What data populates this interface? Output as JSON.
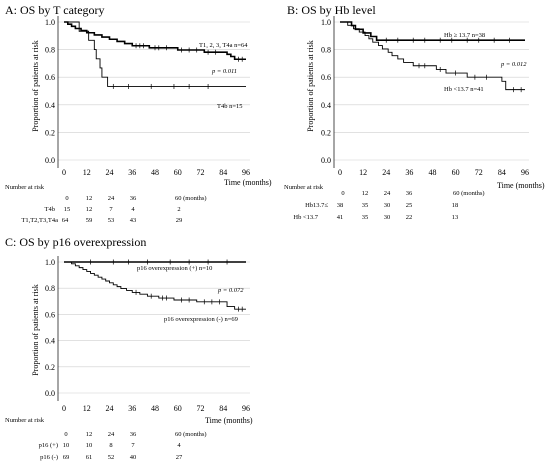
{
  "chart_data": [
    {
      "type": "line",
      "title": "A:  OS by T category",
      "ylabel": "Proportion of patients at risk",
      "xlabel": "Time (months)",
      "xlim": [
        0,
        96
      ],
      "ylim": [
        0,
        1
      ],
      "x_ticks": [
        "0",
        "12",
        "24",
        "36",
        "48",
        "60",
        "72",
        "84",
        "96"
      ],
      "y_ticks": [
        "0.0",
        "0.2",
        "0.4",
        "0.6",
        "0.8",
        "1.0"
      ],
      "grid": true,
      "series": [
        {
          "name": "T1, 2, 3, T4a n=64",
          "steps": [
            [
              0,
              1.0
            ],
            [
              2,
              0.984
            ],
            [
              4,
              0.969
            ],
            [
              6,
              0.953
            ],
            [
              9,
              0.938
            ],
            [
              12,
              0.922
            ],
            [
              16,
              0.906
            ],
            [
              20,
              0.891
            ],
            [
              24,
              0.875
            ],
            [
              28,
              0.859
            ],
            [
              32,
              0.844
            ],
            [
              36,
              0.828
            ],
            [
              45,
              0.813
            ],
            [
              60,
              0.797
            ],
            [
              74,
              0.781
            ],
            [
              86,
              0.766
            ],
            [
              88,
              0.75
            ],
            [
              90,
              0.73
            ],
            [
              96,
              0.73
            ]
          ],
          "censors": [
            [
              38,
              0.828
            ],
            [
              40,
              0.828
            ],
            [
              42,
              0.828
            ],
            [
              48,
              0.813
            ],
            [
              50,
              0.813
            ],
            [
              54,
              0.813
            ],
            [
              62,
              0.797
            ],
            [
              66,
              0.797
            ],
            [
              70,
              0.797
            ],
            [
              76,
              0.781
            ],
            [
              80,
              0.781
            ],
            [
              92,
              0.73
            ],
            [
              94,
              0.73
            ]
          ]
        },
        {
          "name": "T4b n=15",
          "steps": [
            [
              0,
              1.0
            ],
            [
              8,
              0.933
            ],
            [
              13,
              0.867
            ],
            [
              16,
              0.8
            ],
            [
              17,
              0.733
            ],
            [
              19,
              0.667
            ],
            [
              20,
              0.6
            ],
            [
              23,
              0.533
            ],
            [
              96,
              0.533
            ]
          ],
          "censors": [
            [
              26,
              0.533
            ],
            [
              34,
              0.533
            ],
            [
              46,
              0.533
            ],
            [
              58,
              0.533
            ],
            [
              66,
              0.533
            ],
            [
              76,
              0.533
            ]
          ]
        }
      ],
      "annotations": [
        "p = 0.011"
      ],
      "risk_table": {
        "header": "Number at risk",
        "columns": [
          "0",
          "12",
          "24",
          "36",
          "60 (months)"
        ],
        "rows": [
          {
            "label": "T4b",
            "values": [
              "15",
              "12",
              "7",
              "4",
              "2"
            ]
          },
          {
            "label": "T1,T2,T3,T4a",
            "values": [
              "64",
              "59",
              "53",
              "43",
              "29"
            ]
          }
        ]
      }
    },
    {
      "type": "line",
      "title": "B:  OS by Hb level",
      "ylabel": "Proportion of patients at risk",
      "xlabel": "Time (months)",
      "xlim": [
        0,
        96
      ],
      "ylim": [
        0,
        1
      ],
      "x_ticks": [
        "0",
        "12",
        "24",
        "36",
        "48",
        "60",
        "72",
        "84",
        "96"
      ],
      "y_ticks": [
        "0.0",
        "0.2",
        "0.4",
        "0.6",
        "0.8",
        "1.0"
      ],
      "grid": true,
      "series": [
        {
          "name": "Hb ≥ 13.7   n=38",
          "steps": [
            [
              0,
              1.0
            ],
            [
              6,
              0.974
            ],
            [
              8,
              0.947
            ],
            [
              12,
              0.921
            ],
            [
              16,
              0.895
            ],
            [
              19,
              0.868
            ],
            [
              96,
              0.868
            ]
          ],
          "censors": [
            [
              24,
              0.868
            ],
            [
              30,
              0.868
            ],
            [
              38,
              0.868
            ],
            [
              44,
              0.868
            ],
            [
              52,
              0.868
            ],
            [
              58,
              0.868
            ],
            [
              66,
              0.868
            ],
            [
              72,
              0.868
            ],
            [
              80,
              0.868
            ],
            [
              88,
              0.868
            ]
          ]
        },
        {
          "name": "Hb <13.7   n=41",
          "steps": [
            [
              0,
              1.0
            ],
            [
              4,
              0.976
            ],
            [
              7,
              0.951
            ],
            [
              10,
              0.927
            ],
            [
              13,
              0.902
            ],
            [
              15,
              0.878
            ],
            [
              17,
              0.854
            ],
            [
              20,
              0.829
            ],
            [
              22,
              0.805
            ],
            [
              25,
              0.78
            ],
            [
              27,
              0.756
            ],
            [
              30,
              0.732
            ],
            [
              33,
              0.707
            ],
            [
              38,
              0.683
            ],
            [
              50,
              0.656
            ],
            [
              55,
              0.63
            ],
            [
              66,
              0.6
            ],
            [
              84,
              0.57
            ],
            [
              86,
              0.51
            ],
            [
              96,
              0.51
            ]
          ],
          "censors": [
            [
              41,
              0.683
            ],
            [
              44,
              0.683
            ],
            [
              52,
              0.656
            ],
            [
              60,
              0.63
            ],
            [
              70,
              0.6
            ],
            [
              76,
              0.6
            ],
            [
              90,
              0.51
            ],
            [
              94,
              0.51
            ]
          ]
        }
      ],
      "annotations": [
        "p = 0.012"
      ],
      "risk_table": {
        "header": "Number at risk",
        "columns": [
          "0",
          "12",
          "24",
          "36",
          "60 (months)"
        ],
        "rows": [
          {
            "label": "Hb13.7≤",
            "values": [
              "38",
              "35",
              "30",
              "25",
              "18"
            ]
          },
          {
            "label": "Hb <13.7",
            "values": [
              "41",
              "35",
              "30",
              "22",
              "13"
            ]
          }
        ]
      }
    },
    {
      "type": "line",
      "title": "C:  OS by p16 overexpression",
      "ylabel": "Proportion of patients at risk",
      "xlabel": "Time (months)",
      "xlim": [
        0,
        96
      ],
      "ylim": [
        0,
        1
      ],
      "x_ticks": [
        "0",
        "12",
        "24",
        "36",
        "48",
        "60",
        "72",
        "84",
        "96"
      ],
      "y_ticks": [
        "0.0",
        "0.2",
        "0.4",
        "0.6",
        "0.8",
        "1.0"
      ],
      "grid": true,
      "series": [
        {
          "name": "p16 overexpression (+) n=10",
          "steps": [
            [
              0,
              1.0
            ],
            [
              96,
              1.0
            ]
          ],
          "censors": [
            [
              14,
              1.0
            ],
            [
              26,
              1.0
            ],
            [
              34,
              1.0
            ],
            [
              44,
              1.0
            ],
            [
              56,
              1.0
            ],
            [
              66,
              1.0
            ],
            [
              76,
              1.0
            ],
            [
              86,
              1.0
            ]
          ]
        },
        {
          "name": "p16 overexpression (-) n=69",
          "steps": [
            [
              0,
              1.0
            ],
            [
              4,
              0.986
            ],
            [
              6,
              0.971
            ],
            [
              8,
              0.957
            ],
            [
              10,
              0.942
            ],
            [
              12,
              0.928
            ],
            [
              14,
              0.913
            ],
            [
              16,
              0.899
            ],
            [
              18,
              0.884
            ],
            [
              20,
              0.87
            ],
            [
              22,
              0.855
            ],
            [
              24,
              0.841
            ],
            [
              26,
              0.826
            ],
            [
              28,
              0.812
            ],
            [
              30,
              0.797
            ],
            [
              33,
              0.783
            ],
            [
              36,
              0.768
            ],
            [
              40,
              0.754
            ],
            [
              44,
              0.739
            ],
            [
              50,
              0.725
            ],
            [
              58,
              0.71
            ],
            [
              70,
              0.696
            ],
            [
              86,
              0.66
            ],
            [
              90,
              0.64
            ],
            [
              96,
              0.64
            ]
          ],
          "censors": [
            [
              38,
              0.768
            ],
            [
              46,
              0.739
            ],
            [
              52,
              0.725
            ],
            [
              54,
              0.725
            ],
            [
              62,
              0.71
            ],
            [
              66,
              0.71
            ],
            [
              74,
              0.696
            ],
            [
              78,
              0.696
            ],
            [
              82,
              0.696
            ],
            [
              92,
              0.64
            ],
            [
              94,
              0.64
            ]
          ]
        }
      ],
      "annotations": [
        "p = 0.072"
      ],
      "risk_table": {
        "header": "Number at risk",
        "columns": [
          "0",
          "12",
          "24",
          "36",
          "60 (months)"
        ],
        "rows": [
          {
            "label": "p16 (+)",
            "values": [
              "10",
              "10",
              "8",
              "7",
              "4"
            ]
          },
          {
            "label": "p16 (-)",
            "values": [
              "69",
              "61",
              "52",
              "40",
              "27"
            ]
          }
        ]
      }
    }
  ]
}
